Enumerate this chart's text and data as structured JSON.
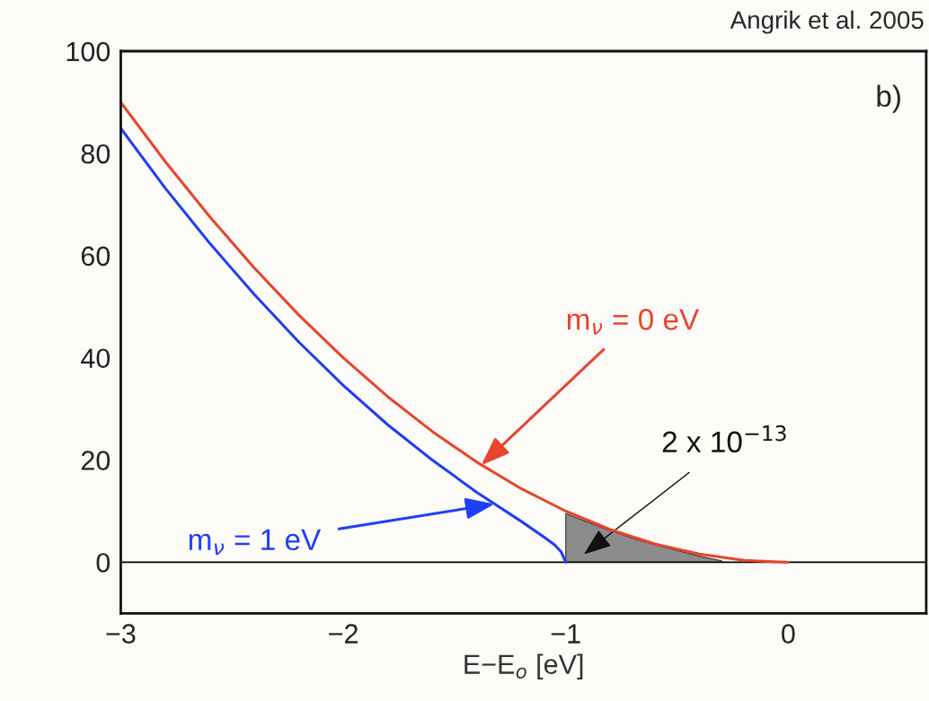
{
  "chart_data": {
    "type": "line",
    "xlabel": "E−E$_{o}$ [eV]",
    "xlim": [
      -3,
      0.62
    ],
    "ylim": [
      -10,
      100
    ],
    "xticks": [
      {
        "value": -3,
        "label": "−3"
      },
      {
        "value": -2,
        "label": "−2"
      },
      {
        "value": -1,
        "label": "−1"
      },
      0
    ],
    "yticks": [
      0,
      20,
      40,
      60,
      80,
      100
    ],
    "grid": false,
    "legend": false,
    "series": [
      {
        "color": "#e8452c",
        "x": [
          -3,
          -2.8,
          -2.6,
          -2.4,
          -2.2,
          -2,
          -1.8,
          -1.6,
          -1.4,
          -1.2,
          -1,
          -0.8,
          -0.6,
          -0.4,
          -0.2,
          0
        ],
        "values": [
          90,
          78.4,
          67.6,
          57.6,
          48.4,
          40,
          32.4,
          25.6,
          19.6,
          14.4,
          10,
          6.4,
          3.6,
          1.6,
          0.4,
          0
        ]
      },
      {
        "color": "#1f3ff5",
        "x": [
          -3,
          -2.8,
          -2.6,
          -2.4,
          -2.2,
          -2,
          -1.8,
          -1.6,
          -1.4,
          -1.2,
          -1.1,
          -1.05,
          -1.02,
          -1
        ],
        "values": [
          84.9,
          73.2,
          62.4,
          52.4,
          43.1,
          34.6,
          26.9,
          20,
          13.7,
          8,
          5,
          3.4,
          2,
          0
        ]
      },
      {
        "type": "area",
        "color": "#8c8c8c",
        "x": [
          -1,
          -0.9,
          -0.8,
          -0.7,
          -0.6,
          -0.5,
          -0.4,
          -0.3
        ],
        "values": [
          9.5,
          7.8,
          6.2,
          4.7,
          3.4,
          2.3,
          1.2,
          0.3
        ]
      }
    ],
    "ref_lines": [
      {
        "axis": "y",
        "value": 0,
        "color": "#000000"
      }
    ],
    "annotations": [
      {
        "text": "m$_{ν}$ = 0 eV",
        "x": -1.38,
        "y": 19
      },
      {
        "text": "m$_{ν}$ = 1 eV",
        "x": -1.32,
        "y": 11.4
      },
      "2 x 10$^{−13}$",
      "b)",
      "Angrik et al. 2005"
    ]
  }
}
